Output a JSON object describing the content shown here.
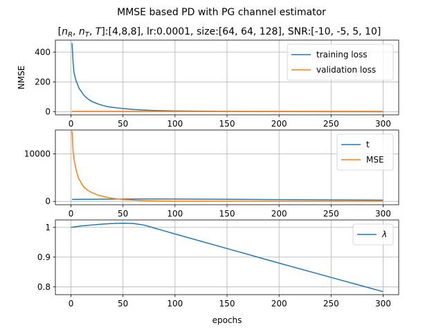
{
  "figure": {
    "title": "MMSE based PD with PG channel estimator",
    "subtitle_parts": {
      "open": "[",
      "nR_base": "n",
      "nR_sub": "R",
      "comma1": ", ",
      "nT_base": "n",
      "nT_sub": "T",
      "comma2": ", ",
      "T": "T",
      "close": "]",
      "rest": ":[4,8,8], lr:0.0001, size:[64, 64, 128], SNR:[-10, -5, 5, 10]"
    },
    "xlabel": "epochs"
  },
  "colors": {
    "blue": "#1f77b4",
    "orange": "#ff7f0e"
  },
  "chart_data": [
    {
      "type": "line",
      "ylabel": "NMSE",
      "xlim": [
        -15,
        315
      ],
      "ylim": [
        -20,
        480
      ],
      "xticks": [
        0,
        50,
        100,
        150,
        200,
        250,
        300
      ],
      "yticks": [
        0,
        200,
        400
      ],
      "grid": true,
      "legend": "top-right",
      "series": [
        {
          "name": "training loss",
          "color": "#1f77b4",
          "x": [
            1,
            1.5,
            2,
            2.5,
            3,
            4,
            5,
            6,
            7,
            8,
            9,
            10,
            12,
            14,
            16,
            18,
            20,
            25,
            30,
            35,
            40,
            45,
            50,
            60,
            70,
            80,
            100,
            150,
            200,
            250,
            300
          ],
          "y": [
            460,
            400,
            330,
            290,
            260,
            230,
            205,
            190,
            170,
            155,
            145,
            135,
            115,
            100,
            88,
            78,
            70,
            55,
            44,
            35,
            30,
            26,
            22,
            16,
            12,
            9,
            6,
            3,
            2,
            1.5,
            1
          ]
        },
        {
          "name": "validation loss",
          "color": "#ff7f0e",
          "x": [
            1,
            50,
            100,
            150,
            200,
            250,
            300
          ],
          "y": [
            3,
            3,
            3,
            3,
            3,
            3,
            3
          ]
        }
      ]
    },
    {
      "type": "line",
      "ylabel": "",
      "xlim": [
        -15,
        315
      ],
      "ylim": [
        -700,
        15000
      ],
      "xticks": [
        0,
        50,
        100,
        150,
        200,
        250,
        300
      ],
      "yticks": [
        0,
        10000
      ],
      "grid": true,
      "legend": "top-right",
      "series": [
        {
          "name": "t",
          "color": "#1f77b4",
          "x": [
            1,
            25,
            50,
            75,
            100,
            150,
            200,
            250,
            300
          ],
          "y": [
            420,
            460,
            500,
            520,
            500,
            440,
            380,
            320,
            260
          ]
        },
        {
          "name": "MSE",
          "color": "#ff7f0e",
          "x": [
            1,
            1.5,
            2,
            3,
            4,
            5,
            6,
            7,
            8,
            10,
            12,
            15,
            18,
            20,
            25,
            30,
            35,
            40,
            45,
            50,
            55,
            60,
            70,
            80,
            90,
            100,
            150,
            200,
            250,
            300
          ],
          "y": [
            14800,
            12500,
            10500,
            8800,
            7600,
            6500,
            5800,
            5000,
            4600,
            3800,
            3100,
            2500,
            2100,
            1850,
            1400,
            1100,
            850,
            650,
            520,
            420,
            330,
            260,
            180,
            120,
            80,
            60,
            40,
            35,
            30,
            30
          ]
        }
      ]
    },
    {
      "type": "line",
      "ylabel": "",
      "xlim": [
        -15,
        315
      ],
      "ylim": [
        0.774,
        1.025
      ],
      "xticks": [
        0,
        50,
        100,
        150,
        200,
        250,
        300
      ],
      "yticks": [
        0.8,
        0.9,
        1.0
      ],
      "grid": true,
      "legend": "top-right",
      "series": [
        {
          "name": "λ",
          "color": "#1f77b4",
          "x": [
            0,
            10,
            20,
            30,
            40,
            50,
            60,
            70,
            80,
            90,
            100,
            150,
            200,
            250,
            300
          ],
          "y": [
            1.0,
            1.005,
            1.008,
            1.011,
            1.013,
            1.014,
            1.013,
            1.008,
            0.998,
            0.988,
            0.978,
            0.929,
            0.88,
            0.832,
            0.784
          ]
        }
      ]
    }
  ]
}
